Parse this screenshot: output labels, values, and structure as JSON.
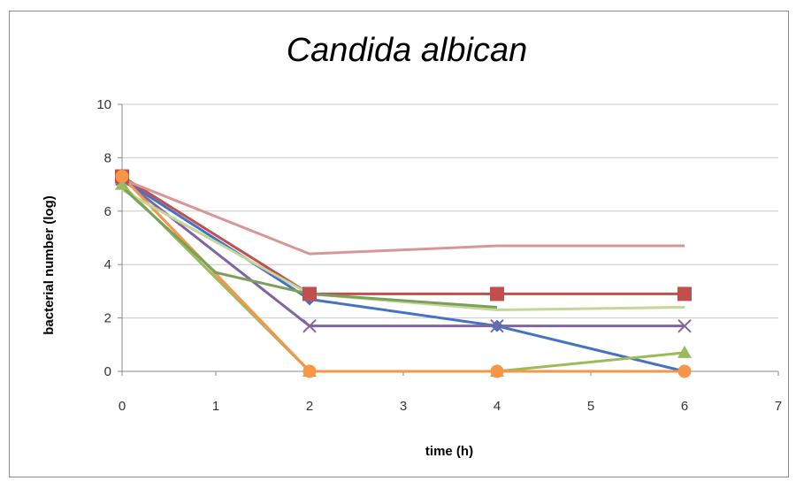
{
  "chart_data": {
    "type": "line",
    "title": "Candida albican",
    "xlabel": "time (h)",
    "ylabel": "bacterial number (log)",
    "xlim": [
      0,
      7
    ],
    "ylim": [
      0,
      10
    ],
    "xticks": [
      "0",
      "1",
      "2",
      "3",
      "4",
      "5",
      "6",
      "7"
    ],
    "yticks": [
      "0",
      "2",
      "4",
      "6",
      "8",
      "10"
    ],
    "grid": "horizontal",
    "x": [
      0,
      2,
      4,
      6
    ],
    "series": [
      {
        "color": "#4472C4",
        "marker": "diamond",
        "values": [
          7.2,
          2.7,
          1.7,
          0
        ]
      },
      {
        "color": "#C0504D",
        "marker": "square",
        "values": [
          7.3,
          2.9,
          2.9,
          2.9
        ]
      },
      {
        "color": "#9BBB59",
        "marker": "triangle",
        "values": [
          7.0,
          0,
          0,
          0.7
        ]
      },
      {
        "color": "#8064A2",
        "marker": "x",
        "values": [
          7.2,
          1.7,
          1.7,
          1.7
        ]
      },
      {
        "color": "#95B3D7",
        "marker": "none",
        "values": [
          7.3,
          0,
          0,
          0
        ]
      },
      {
        "color": "#F79646",
        "marker": "circle",
        "values": [
          7.3,
          0,
          0,
          0
        ]
      },
      {
        "color": "#D99694",
        "marker": "none",
        "values": [
          7.2,
          4.4,
          4.7,
          4.7
        ]
      },
      {
        "color": "#C3D69B",
        "marker": "none",
        "values": [
          6.8,
          2.9,
          2.3,
          2.4
        ]
      },
      {
        "color": "#7BA05B",
        "marker": "none",
        "values": [
          6.9,
          3.7,
          2.9,
          2.4
        ],
        "x": [
          0,
          1,
          2,
          4
        ]
      }
    ]
  }
}
